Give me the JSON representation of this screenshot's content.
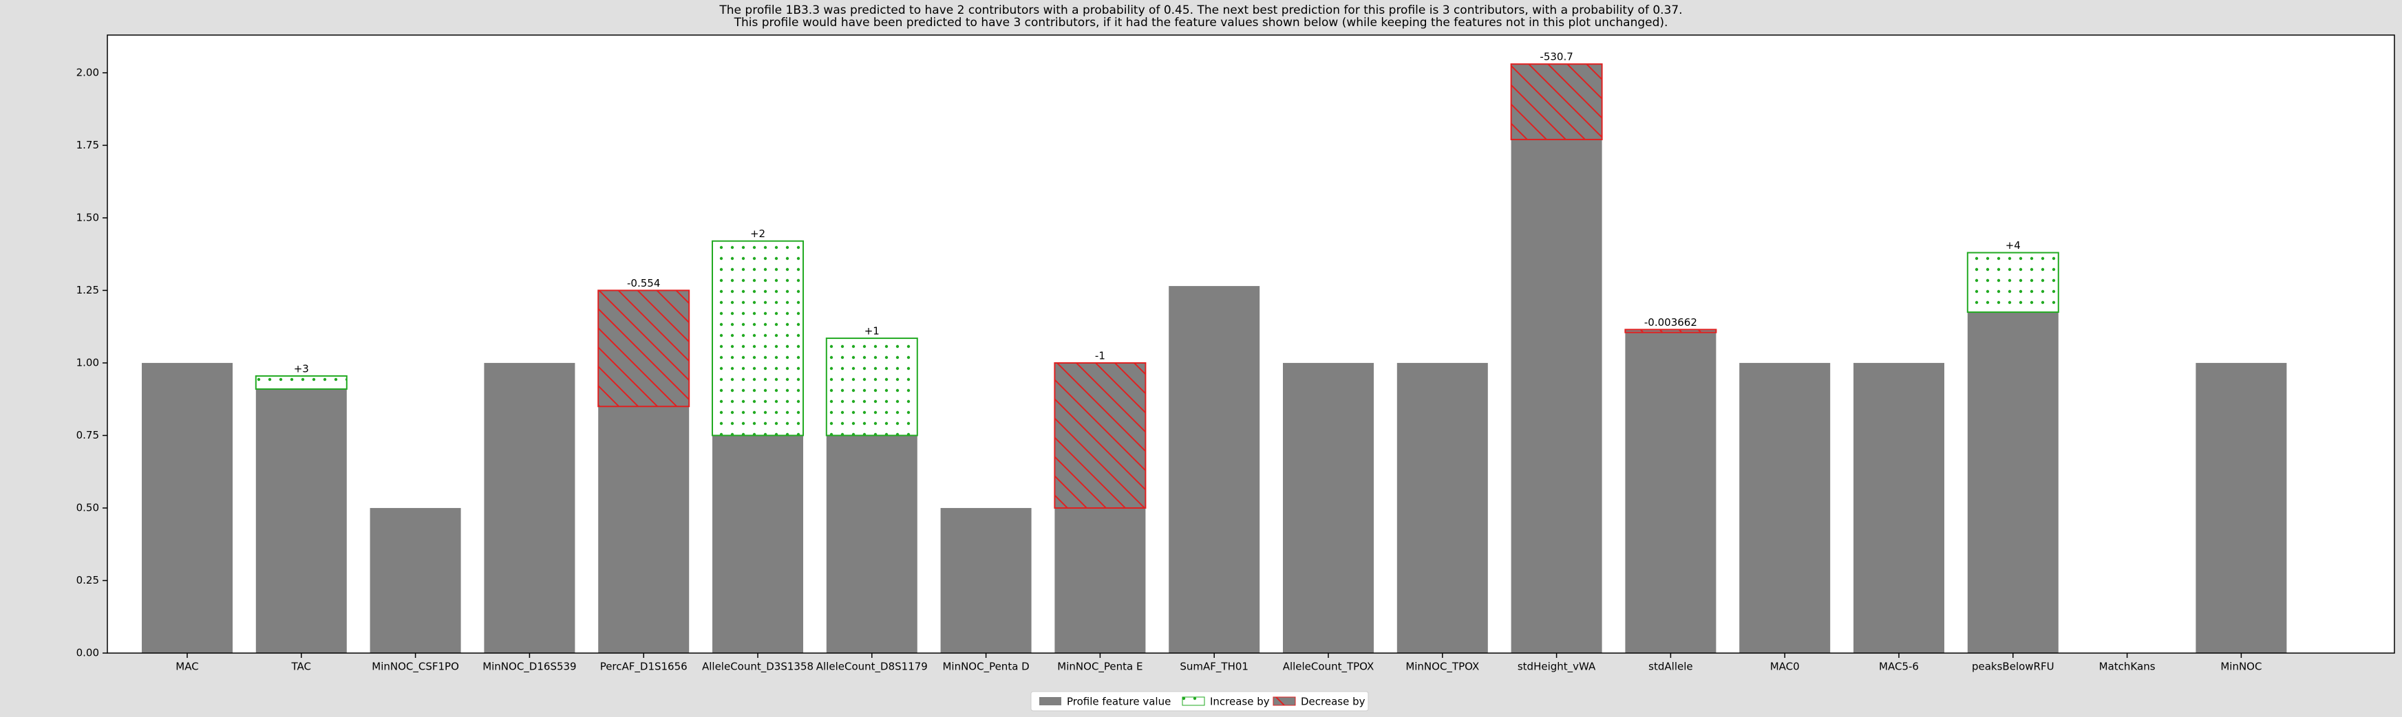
{
  "chart_data": {
    "type": "stacked_bar",
    "title": "The profile 1B3.3 was predicted to have 2 contributors with a probability of 0.45. The next best prediction for this profile is 3 contributors, with a probability of 0.37.",
    "subtitle": "This profile would have been predicted to have 3 contributors, if it had the feature values shown below (while keeping the features not in this plot unchanged).",
    "categories": [
      "MAC",
      "TAC",
      "MinNOC_CSF1PO",
      "MinNOC_D16S539",
      "PercAF_D1S1656",
      "AlleleCount_D3S1358",
      "AlleleCount_D8S1179",
      "MinNOC_Penta D",
      "MinNOC_Penta E",
      "SumAF_TH01",
      "AlleleCount_TPOX",
      "MinNOC_TPOX",
      "stdHeight_vWA",
      "stdAllele",
      "MAC0",
      "MAC5-6",
      "peaksBelowRFU",
      "MatchKans",
      "MinNOC"
    ],
    "series": [
      {
        "name": "Profile feature value",
        "color": "#808080",
        "facecolor": "#808080",
        "hatch": "none",
        "values": [
          1.0,
          0.91,
          0.5,
          1.0,
          0.85,
          0.75,
          0.75,
          0.5,
          0.5,
          1.265,
          1.0,
          1.0,
          1.77,
          1.105,
          1.0,
          1.0,
          1.175,
          0,
          1.0
        ]
      },
      {
        "name": "Increase by",
        "color": "#22aa22",
        "facecolor": "#ffffff",
        "hatch": "dots",
        "values": [
          null,
          0.045,
          null,
          null,
          null,
          0.67,
          0.335,
          null,
          null,
          null,
          null,
          null,
          null,
          null,
          null,
          null,
          0.205,
          null,
          null
        ]
      },
      {
        "name": "Decrease by",
        "color": "#e02020",
        "facecolor": "#808080",
        "hatch": "diagonal",
        "values": [
          null,
          null,
          null,
          null,
          0.4,
          null,
          null,
          null,
          0.5,
          null,
          null,
          null,
          0.26,
          0.01,
          null,
          null,
          null,
          null,
          null
        ]
      }
    ],
    "annotations": [
      null,
      "+3",
      null,
      null,
      "-0.554",
      "+2",
      "+1",
      null,
      "-1",
      null,
      null,
      null,
      "-530.7",
      "-0.003662",
      null,
      null,
      "+4",
      null,
      null
    ],
    "ylim": [
      0,
      2.13
    ],
    "yticks": [
      {
        "value": 0,
        "label": "0.00"
      },
      {
        "value": 0.25,
        "label": "0.25"
      },
      {
        "value": 0.5,
        "label": "0.50"
      },
      {
        "value": 0.75,
        "label": "0.75"
      },
      {
        "value": 1,
        "label": "1.00"
      },
      {
        "value": 1.25,
        "label": "1.25"
      },
      {
        "value": 1.5,
        "label": "1.50"
      },
      {
        "value": 1.75,
        "label": "1.75"
      },
      {
        "value": 2,
        "label": "2.00"
      }
    ],
    "grid": false,
    "legend": "bottom"
  }
}
